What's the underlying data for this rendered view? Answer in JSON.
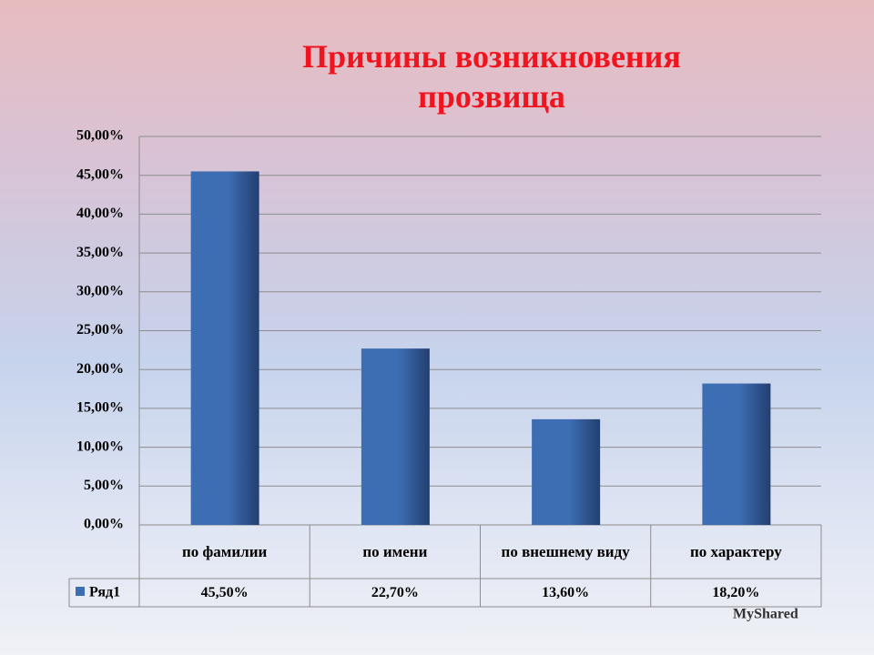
{
  "chart_data": {
    "type": "bar",
    "title": "Причины возникновения прозвища",
    "categories": [
      "по фамилии",
      "по имени",
      "по внешнему виду",
      "по характеру"
    ],
    "series": [
      {
        "name": "Ряд1",
        "color": "#3d6db3",
        "values": [
          45.5,
          22.7,
          13.6,
          18.2
        ],
        "value_labels": [
          "45,50%",
          "22,70%",
          "13,60%",
          "18,20%"
        ]
      }
    ],
    "ylim": [
      0,
      50
    ],
    "yticks": [
      {
        "value": 0,
        "label": "0,00%"
      },
      {
        "value": 5,
        "label": "5,00%"
      },
      {
        "value": 10,
        "label": "10,00%"
      },
      {
        "value": 15,
        "label": "15,00%"
      },
      {
        "value": 20,
        "label": "20,00%"
      },
      {
        "value": 25,
        "label": "25,00%"
      },
      {
        "value": 30,
        "label": "30,00%"
      },
      {
        "value": 35,
        "label": "35,00%"
      },
      {
        "value": 40,
        "label": "40,00%"
      },
      {
        "value": 45,
        "label": "45,00%"
      },
      {
        "value": 50,
        "label": "50,00%"
      }
    ],
    "grid": true,
    "watermark": "MyShared"
  }
}
